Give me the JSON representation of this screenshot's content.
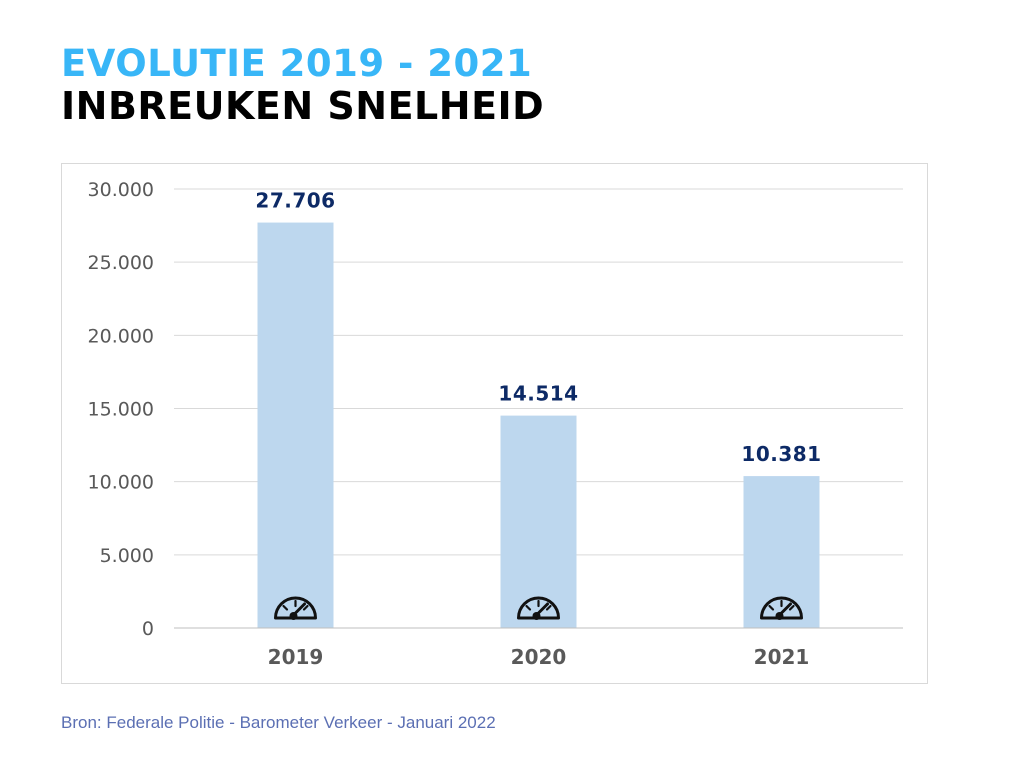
{
  "header": {
    "title_line1": "EVOLUTIE 2019 - 2021",
    "title_line2": "INBREUKEN SNELHEID"
  },
  "source": "Bron: Federale Politie - Barometer Verkeer - Januari 2022",
  "colors": {
    "title_accent": "#38b6f7",
    "bar_fill": "#bdd7ee",
    "data_label": "#0d2a66",
    "axis_text": "#595959",
    "grid": "#d9d9d9"
  },
  "chart_data": {
    "type": "bar",
    "title": "INBREUKEN SNELHEID",
    "xlabel": "",
    "ylabel": "",
    "categories": [
      "2019",
      "2020",
      "2021"
    ],
    "values": [
      27706,
      14514,
      10381
    ],
    "value_labels": [
      "27.706",
      "14.514",
      "10.381"
    ],
    "ylim": [
      0,
      30000
    ],
    "yticks": [
      0,
      5000,
      10000,
      15000,
      20000,
      25000,
      30000
    ],
    "ytick_labels": [
      "0",
      "5.000",
      "10.000",
      "15.000",
      "20.000",
      "25.000",
      "30.000"
    ],
    "grid": true,
    "bar_icon": "speedometer-icon"
  }
}
